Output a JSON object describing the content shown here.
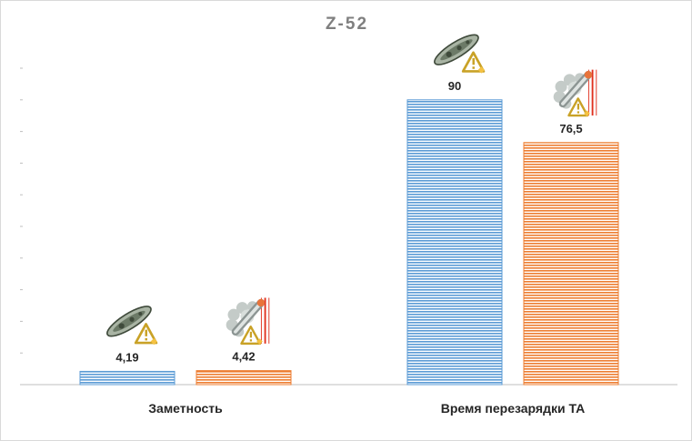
{
  "chart_data": {
    "type": "bar",
    "title": "Z-52",
    "xlabel": "",
    "ylabel": "",
    "categories": [
      "Заметность",
      "Время перезарядки ТА"
    ],
    "series": [
      {
        "values": [
          4.19,
          90
        ],
        "labels": [
          "4,19",
          "90"
        ],
        "color": "#5b9bd5",
        "icon": "torpedo-reload-module-icon"
      },
      {
        "values": [
          4.42,
          76.5
        ],
        "labels": [
          "4,42",
          "76,5"
        ],
        "color": "#ed7d31",
        "icon": "torpedo-launcher-modification-icon"
      }
    ],
    "ylim": [
      0,
      100
    ],
    "grid": false,
    "legend": "none"
  }
}
